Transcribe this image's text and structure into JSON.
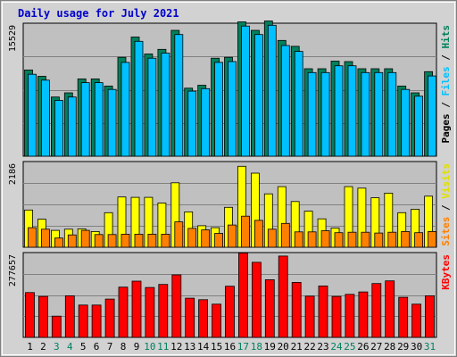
{
  "chart_data": {
    "type": "bar",
    "title": "Daily usage for July 2021",
    "x": [
      1,
      2,
      3,
      4,
      5,
      6,
      7,
      8,
      9,
      10,
      11,
      12,
      13,
      14,
      15,
      16,
      17,
      18,
      19,
      20,
      21,
      22,
      23,
      24,
      25,
      26,
      27,
      28,
      29,
      30,
      31
    ],
    "weekend_days": [
      3,
      4,
      10,
      11,
      17,
      18,
      24,
      25,
      31
    ],
    "panels": [
      {
        "name": "hits-files-pages",
        "ymax_label": "15529",
        "ymax": 15529,
        "right_label": [
          "Pages",
          "Files",
          "Hits"
        ],
        "series": [
          {
            "name": "Hits",
            "color": "#00805c",
            "values": [
              10200,
              9450,
              7000,
              7500,
              9150,
              9150,
              8300,
              11700,
              14100,
              12100,
              12650,
              14900,
              8050,
              8400,
              11600,
              11700,
              15900,
              14900,
              16000,
              13700,
              13000,
              10350,
              10350,
              11250,
              11200,
              10350,
              10350,
              10350,
              8300,
              7500,
              10000
            ]
          },
          {
            "name": "Files",
            "color": "#00c0ff",
            "values": [
              9700,
              9000,
              6600,
              7000,
              8700,
              8700,
              7900,
              11100,
              13600,
              11600,
              12200,
              14400,
              7700,
              8000,
              11100,
              11200,
              15400,
              14400,
              15500,
              13100,
              12400,
              9900,
              9900,
              10700,
              10700,
              9900,
              9900,
              9900,
              7900,
              7100,
              9500
            ]
          }
        ]
      },
      {
        "name": "visits-sites",
        "ymax_label": "2186",
        "ymax": 2186,
        "right_label": [
          "Sites",
          "Visits"
        ],
        "series": [
          {
            "name": "Visits",
            "color": "#ffff00",
            "values": [
              970,
              730,
              440,
              470,
              480,
              410,
              900,
              1310,
              1300,
              1300,
              1150,
              1680,
              920,
              560,
              510,
              1040,
              2110,
              1930,
              1390,
              1580,
              1190,
              940,
              740,
              500,
              1580,
              1540,
              1290,
              1410,
              900,
              990,
              1330
            ]
          },
          {
            "name": "Sites",
            "color": "#ff8000",
            "values": [
              510,
              470,
              240,
              320,
              440,
              330,
              330,
              340,
              340,
              340,
              340,
              660,
              490,
              450,
              360,
              580,
              810,
              700,
              470,
              620,
              400,
              400,
              430,
              380,
              390,
              390,
              370,
              390,
              410,
              380,
              410
            ]
          }
        ]
      },
      {
        "name": "kbytes",
        "ymax_label": "277657",
        "ymax": 277657,
        "right_label": [
          "KBytes"
        ],
        "series": [
          {
            "name": "KBytes",
            "color": "#ff0000",
            "values": [
              150000,
              137000,
              71000,
              139000,
              108000,
              108000,
              128000,
              168000,
              188000,
              167000,
              177000,
              209000,
              131000,
              126000,
              111000,
              171000,
              282000,
              251000,
              193000,
              272000,
              184000,
              138000,
              172000,
              137000,
              144000,
              152000,
              180000,
              189000,
              134000,
              111000,
              139000
            ]
          }
        ]
      }
    ]
  }
}
